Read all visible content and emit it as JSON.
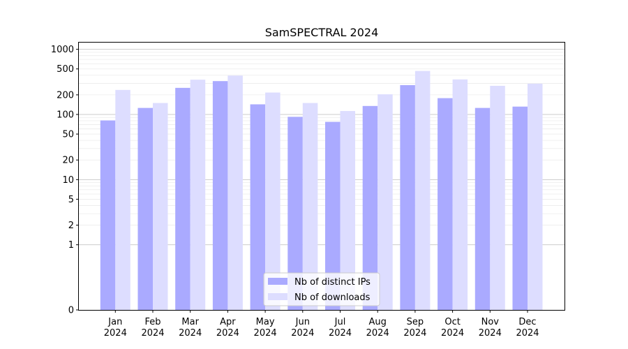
{
  "chart_data": {
    "type": "bar",
    "title": "SamSPECTRAL 2024",
    "xlabel": "",
    "ylabel": "",
    "yscale": "symlog",
    "ylim": [
      0,
      1300
    ],
    "major_ticks": [
      0,
      1,
      2,
      5,
      10,
      20,
      50,
      100,
      200,
      500,
      1000
    ],
    "tick_labels": [
      "0",
      "1",
      "2",
      "5",
      "10",
      "20",
      "50",
      "100",
      "200",
      "500",
      "1000"
    ],
    "grid": true,
    "legend_position": "bottom-center",
    "categories": [
      [
        "Jan",
        "2024"
      ],
      [
        "Feb",
        "2024"
      ],
      [
        "Mar",
        "2024"
      ],
      [
        "Apr",
        "2024"
      ],
      [
        "May",
        "2024"
      ],
      [
        "Jun",
        "2024"
      ],
      [
        "Jul",
        "2024"
      ],
      [
        "Aug",
        "2024"
      ],
      [
        "Sep",
        "2024"
      ],
      [
        "Oct",
        "2024"
      ],
      [
        "Nov",
        "2024"
      ],
      [
        "Dec",
        "2024"
      ]
    ],
    "series": [
      {
        "name": "Nb of distinct IPs",
        "color": "#aaaaff",
        "values": [
          81,
          126,
          256,
          325,
          143,
          92,
          77,
          135,
          282,
          178,
          126,
          132
        ]
      },
      {
        "name": "Nb of downloads",
        "color": "#ddddff",
        "values": [
          238,
          150,
          342,
          395,
          217,
          150,
          113,
          204,
          465,
          345,
          275,
          297
        ]
      }
    ]
  }
}
